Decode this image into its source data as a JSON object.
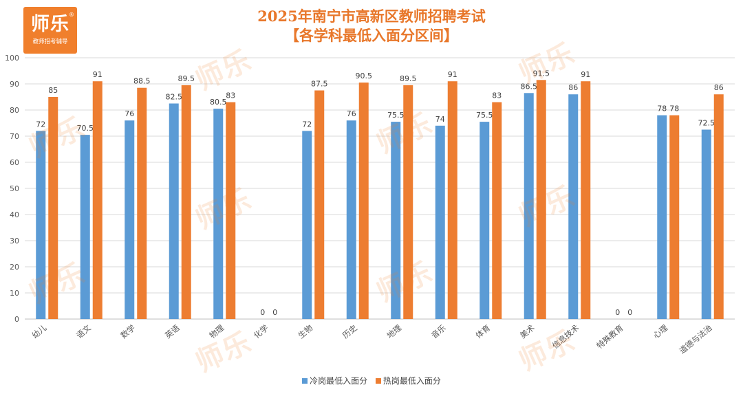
{
  "logo": {
    "name": "师乐",
    "tagline": "教师招考辅导",
    "reg_mark": "®"
  },
  "watermark_text": "师乐",
  "colors": {
    "cold": "#5b9bd5",
    "hot": "#ed7d31",
    "title": "#e8772a",
    "grid": "#d9d9d9"
  },
  "chart_data": {
    "type": "bar",
    "title": "2025年南宁市高新区教师招聘考试",
    "subtitle": "【各学科最低入面分区间】",
    "categories": [
      "幼儿",
      "语文",
      "数学",
      "英语",
      "物理",
      "化学",
      "生物",
      "历史",
      "地理",
      "音乐",
      "体育",
      "美术",
      "信息技术",
      "特殊教育",
      "心理",
      "道德与法治"
    ],
    "series": [
      {
        "name": "冷岗最低入面分",
        "color": "#5b9bd5",
        "values": [
          72,
          70.5,
          76,
          82.5,
          80.5,
          0,
          72,
          76,
          75.5,
          74,
          75.5,
          86.5,
          86,
          0,
          78,
          72.5
        ]
      },
      {
        "name": "热岗最低入面分",
        "color": "#ed7d31",
        "values": [
          85,
          91,
          88.5,
          89.5,
          83,
          0,
          87.5,
          90.5,
          89.5,
          91,
          83,
          91.5,
          91,
          0,
          78,
          86
        ]
      }
    ],
    "ylim": [
      0,
      100
    ],
    "yticks": [
      0,
      10,
      20,
      30,
      40,
      50,
      60,
      70,
      80,
      90,
      100
    ],
    "grid": true,
    "legend": "bottom"
  }
}
